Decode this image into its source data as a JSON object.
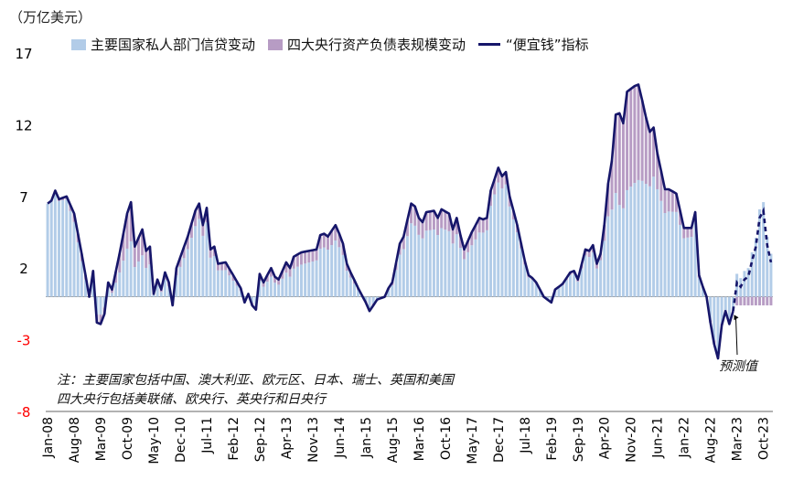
{
  "unit_label": "（万亿美元）",
  "legend": {
    "credit": "主要国家私人部门信贷变动",
    "cb": "四大央行资产负债表规模变动",
    "liquidity": "“便宜钱”指标"
  },
  "notes": {
    "line1": "注：主要国家包括中国、澳大利亚、欧元区、日本、瑞士、英国和美国",
    "line2": "四大央行包括美联储、欧央行、英央行和日央行"
  },
  "forecast_label": "预测值",
  "colors": {
    "credit": "#b2cce8",
    "cb": "#b79cc4",
    "line": "#16166a",
    "neg_tick": "#ff0000"
  },
  "chart_data": {
    "type": "bar+line",
    "ylim": [
      -8,
      17
    ],
    "y_ticks": [
      17,
      12,
      7,
      2,
      -3,
      -8
    ],
    "x_tick_labels": [
      "Jan-08",
      "Aug-08",
      "Mar-09",
      "Oct-09",
      "May-10",
      "Dec-10",
      "Jul-11",
      "Feb-12",
      "Sep-12",
      "Apr-13",
      "Nov-13",
      "Jun-14",
      "Jan-15",
      "Aug-15",
      "Mar-16",
      "Oct-16",
      "May-17",
      "Dec-17",
      "Jul-18",
      "Feb-19",
      "Sep-19",
      "Apr-20",
      "Nov-20",
      "Jun-21",
      "Jan-22",
      "Aug-22",
      "Mar-23",
      "Oct-23"
    ],
    "line_anchors": [
      {
        "date": "2008-01",
        "value": 6.5
      },
      {
        "date": "2008-02",
        "value": 6.7
      },
      {
        "date": "2008-03",
        "value": 7.4
      },
      {
        "date": "2008-04",
        "value": 6.8
      },
      {
        "date": "2008-06",
        "value": 7.0
      },
      {
        "date": "2008-08",
        "value": 5.8
      },
      {
        "date": "2008-10",
        "value": 3.0
      },
      {
        "date": "2008-12",
        "value": 0.0
      },
      {
        "date": "2009-01",
        "value": 1.8
      },
      {
        "date": "2009-02",
        "value": -1.8
      },
      {
        "date": "2009-03",
        "value": -1.9
      },
      {
        "date": "2009-04",
        "value": -1.2
      },
      {
        "date": "2009-05",
        "value": 1.0
      },
      {
        "date": "2009-06",
        "value": 0.5
      },
      {
        "date": "2009-08",
        "value": 3.0
      },
      {
        "date": "2009-10",
        "value": 5.8
      },
      {
        "date": "2009-11",
        "value": 6.6
      },
      {
        "date": "2009-12",
        "value": 3.5
      },
      {
        "date": "2010-02",
        "value": 4.7
      },
      {
        "date": "2010-03",
        "value": 3.2
      },
      {
        "date": "2010-04",
        "value": 3.5
      },
      {
        "date": "2010-05",
        "value": 0.2
      },
      {
        "date": "2010-06",
        "value": 1.2
      },
      {
        "date": "2010-07",
        "value": 0.5
      },
      {
        "date": "2010-08",
        "value": 1.7
      },
      {
        "date": "2010-09",
        "value": 1.0
      },
      {
        "date": "2010-10",
        "value": -0.6
      },
      {
        "date": "2010-11",
        "value": 2.0
      },
      {
        "date": "2011-02",
        "value": 4.2
      },
      {
        "date": "2011-04",
        "value": 6.0
      },
      {
        "date": "2011-05",
        "value": 6.5
      },
      {
        "date": "2011-06",
        "value": 5.0
      },
      {
        "date": "2011-07",
        "value": 6.2
      },
      {
        "date": "2011-08",
        "value": 3.3
      },
      {
        "date": "2011-09",
        "value": 3.5
      },
      {
        "date": "2011-10",
        "value": 2.3
      },
      {
        "date": "2011-12",
        "value": 2.4
      },
      {
        "date": "2012-02",
        "value": 1.5
      },
      {
        "date": "2012-04",
        "value": 0.6
      },
      {
        "date": "2012-05",
        "value": -0.4
      },
      {
        "date": "2012-06",
        "value": 0.2
      },
      {
        "date": "2012-07",
        "value": -0.6
      },
      {
        "date": "2012-08",
        "value": -0.9
      },
      {
        "date": "2012-09",
        "value": 1.6
      },
      {
        "date": "2012-10",
        "value": 1.0
      },
      {
        "date": "2012-12",
        "value": 2.0
      },
      {
        "date": "2013-01",
        "value": 1.4
      },
      {
        "date": "2013-02",
        "value": 1.2
      },
      {
        "date": "2013-04",
        "value": 2.4
      },
      {
        "date": "2013-05",
        "value": 2.0
      },
      {
        "date": "2013-06",
        "value": 2.8
      },
      {
        "date": "2013-08",
        "value": 3.1
      },
      {
        "date": "2013-10",
        "value": 3.2
      },
      {
        "date": "2013-12",
        "value": 3.3
      },
      {
        "date": "2014-01",
        "value": 4.3
      },
      {
        "date": "2014-02",
        "value": 4.4
      },
      {
        "date": "2014-03",
        "value": 4.2
      },
      {
        "date": "2014-05",
        "value": 5.0
      },
      {
        "date": "2014-06",
        "value": 4.4
      },
      {
        "date": "2014-07",
        "value": 3.7
      },
      {
        "date": "2014-08",
        "value": 2.3
      },
      {
        "date": "2014-09",
        "value": 1.7
      },
      {
        "date": "2014-11",
        "value": 0.6
      },
      {
        "date": "2015-01",
        "value": -0.4
      },
      {
        "date": "2015-02",
        "value": -1.0
      },
      {
        "date": "2015-03",
        "value": -0.6
      },
      {
        "date": "2015-04",
        "value": -0.2
      },
      {
        "date": "2015-06",
        "value": 0.0
      },
      {
        "date": "2015-07",
        "value": 0.6
      },
      {
        "date": "2015-08",
        "value": 1.0
      },
      {
        "date": "2015-10",
        "value": 3.7
      },
      {
        "date": "2015-11",
        "value": 4.2
      },
      {
        "date": "2016-01",
        "value": 6.5
      },
      {
        "date": "2016-02",
        "value": 6.3
      },
      {
        "date": "2016-03",
        "value": 5.5
      },
      {
        "date": "2016-04",
        "value": 5.2
      },
      {
        "date": "2016-05",
        "value": 5.9
      },
      {
        "date": "2016-07",
        "value": 6.0
      },
      {
        "date": "2016-08",
        "value": 5.5
      },
      {
        "date": "2016-09",
        "value": 6.1
      },
      {
        "date": "2016-11",
        "value": 5.8
      },
      {
        "date": "2016-12",
        "value": 4.7
      },
      {
        "date": "2017-01",
        "value": 5.5
      },
      {
        "date": "2017-02",
        "value": 4.3
      },
      {
        "date": "2017-03",
        "value": 3.3
      },
      {
        "date": "2017-05",
        "value": 4.5
      },
      {
        "date": "2017-07",
        "value": 5.5
      },
      {
        "date": "2017-08",
        "value": 5.4
      },
      {
        "date": "2017-09",
        "value": 5.5
      },
      {
        "date": "2017-10",
        "value": 7.4
      },
      {
        "date": "2017-12",
        "value": 9.0
      },
      {
        "date": "2018-01",
        "value": 8.4
      },
      {
        "date": "2018-02",
        "value": 8.7
      },
      {
        "date": "2018-03",
        "value": 7.0
      },
      {
        "date": "2018-05",
        "value": 5.0
      },
      {
        "date": "2018-07",
        "value": 2.5
      },
      {
        "date": "2018-08",
        "value": 1.5
      },
      {
        "date": "2018-09",
        "value": 1.3
      },
      {
        "date": "2018-10",
        "value": 1.0
      },
      {
        "date": "2018-12",
        "value": 0.0
      },
      {
        "date": "2019-02",
        "value": -0.4
      },
      {
        "date": "2019-03",
        "value": 0.5
      },
      {
        "date": "2019-05",
        "value": 0.9
      },
      {
        "date": "2019-07",
        "value": 1.7
      },
      {
        "date": "2019-08",
        "value": 1.8
      },
      {
        "date": "2019-09",
        "value": 1.2
      },
      {
        "date": "2019-11",
        "value": 3.3
      },
      {
        "date": "2019-12",
        "value": 3.2
      },
      {
        "date": "2020-01",
        "value": 3.6
      },
      {
        "date": "2020-02",
        "value": 2.3
      },
      {
        "date": "2020-03",
        "value": 3.0
      },
      {
        "date": "2020-04",
        "value": 5.0
      },
      {
        "date": "2020-05",
        "value": 7.9
      },
      {
        "date": "2020-06",
        "value": 9.5
      },
      {
        "date": "2020-07",
        "value": 12.7
      },
      {
        "date": "2020-08",
        "value": 12.8
      },
      {
        "date": "2020-09",
        "value": 12.1
      },
      {
        "date": "2020-10",
        "value": 14.3
      },
      {
        "date": "2020-12",
        "value": 14.7
      },
      {
        "date": "2021-01",
        "value": 14.8
      },
      {
        "date": "2021-02",
        "value": 13.7
      },
      {
        "date": "2021-03",
        "value": 12.5
      },
      {
        "date": "2021-04",
        "value": 11.5
      },
      {
        "date": "2021-05",
        "value": 11.8
      },
      {
        "date": "2021-06",
        "value": 10.0
      },
      {
        "date": "2021-08",
        "value": 7.5
      },
      {
        "date": "2021-09",
        "value": 7.5
      },
      {
        "date": "2021-11",
        "value": 7.2
      },
      {
        "date": "2021-12",
        "value": 6.0
      },
      {
        "date": "2022-01",
        "value": 4.8
      },
      {
        "date": "2022-03",
        "value": 4.8
      },
      {
        "date": "2022-04",
        "value": 5.9
      },
      {
        "date": "2022-05",
        "value": 1.5
      },
      {
        "date": "2022-06",
        "value": 0.7
      },
      {
        "date": "2022-07",
        "value": 0.0
      },
      {
        "date": "2022-08",
        "value": -1.8
      },
      {
        "date": "2022-09",
        "value": -3.3
      },
      {
        "date": "2022-10",
        "value": -4.3
      },
      {
        "date": "2022-11",
        "value": -2.0
      },
      {
        "date": "2022-12",
        "value": -1.0
      },
      {
        "date": "2023-01",
        "value": -1.9
      },
      {
        "date": "2023-02",
        "value": -1.0
      }
    ],
    "forecast_anchors": [
      {
        "date": "2023-02",
        "value": -1.0
      },
      {
        "date": "2023-03",
        "value": 1.0
      },
      {
        "date": "2023-04",
        "value": 0.7
      },
      {
        "date": "2023-05",
        "value": 1.2
      },
      {
        "date": "2023-06",
        "value": 1.4
      },
      {
        "date": "2023-07",
        "value": 2.5
      },
      {
        "date": "2023-08",
        "value": 3.5
      },
      {
        "date": "2023-09",
        "value": 5.5
      },
      {
        "date": "2023-10",
        "value": 6.0
      },
      {
        "date": "2023-11",
        "value": 3.6
      },
      {
        "date": "2023-12",
        "value": 2.4
      }
    ],
    "credit_share_anchors": [
      {
        "date": "2008-01",
        "share": 1.0
      },
      {
        "date": "2008-06",
        "share": 0.97
      },
      {
        "date": "2009-06",
        "share": 0.55
      },
      {
        "date": "2010-01",
        "share": 0.6
      },
      {
        "date": "2011-06",
        "share": 0.85
      },
      {
        "date": "2012-06",
        "share": 0.7
      },
      {
        "date": "2013-06",
        "share": 0.7
      },
      {
        "date": "2014-01",
        "share": 0.78
      },
      {
        "date": "2015-06",
        "share": 0.8
      },
      {
        "date": "2016-06",
        "share": 0.78
      },
      {
        "date": "2017-06",
        "share": 0.8
      },
      {
        "date": "2018-01",
        "share": 0.9
      },
      {
        "date": "2019-06",
        "share": 0.9
      },
      {
        "date": "2020-03",
        "share": 0.85
      },
      {
        "date": "2020-08",
        "share": 0.5
      },
      {
        "date": "2021-01",
        "share": 0.55
      },
      {
        "date": "2021-06",
        "share": 0.75
      },
      {
        "date": "2022-01",
        "share": 0.85
      },
      {
        "date": "2022-06",
        "share": 0.9
      },
      {
        "date": "2023-06",
        "share": 1.0
      },
      {
        "date": "2023-12",
        "share": 1.0
      }
    ]
  }
}
